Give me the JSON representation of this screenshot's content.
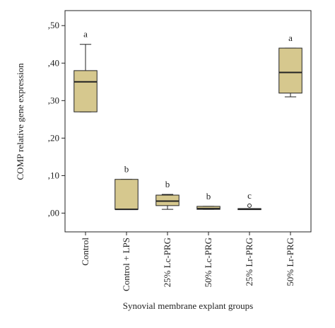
{
  "chart_data": {
    "type": "box",
    "y_label": "COMP relative gene expression",
    "x_label": "Synovial membrane explant groups",
    "categories": [
      "Control",
      "Control + LPS",
      "25% Lc-PRG",
      "50% Lc-PRG",
      "25% Lr-PRG",
      "50% Lr-PRG"
    ],
    "min": [
      0.27,
      0.01,
      0.01,
      0.01,
      0.01,
      0.31
    ],
    "q1": [
      0.27,
      0.01,
      0.02,
      0.01,
      0.01,
      0.32
    ],
    "median": [
      0.35,
      0.01,
      0.032,
      0.012,
      0.011,
      0.375
    ],
    "q3": [
      0.38,
      0.09,
      0.048,
      0.018,
      0.012,
      0.44
    ],
    "max": [
      0.45,
      0.09,
      0.05,
      0.018,
      0.012,
      0.44
    ],
    "outliers": [
      [],
      [],
      [],
      [],
      [
        0.02
      ],
      []
    ],
    "group_letters": [
      "a",
      "b",
      "b",
      "b",
      "c",
      "a"
    ],
    "color": "#d6c88e",
    "ylim": [
      -0.05,
      0.54
    ],
    "yticks": [
      {
        "value": 0,
        "label": ",00"
      },
      {
        "value": 0.1,
        "label": ",10"
      },
      {
        "value": 0.2,
        "label": ",20"
      },
      {
        "value": 0.3,
        "label": ",30"
      },
      {
        "value": 0.4,
        "label": ",40"
      },
      {
        "value": 0.5,
        "label": ",50"
      }
    ]
  }
}
